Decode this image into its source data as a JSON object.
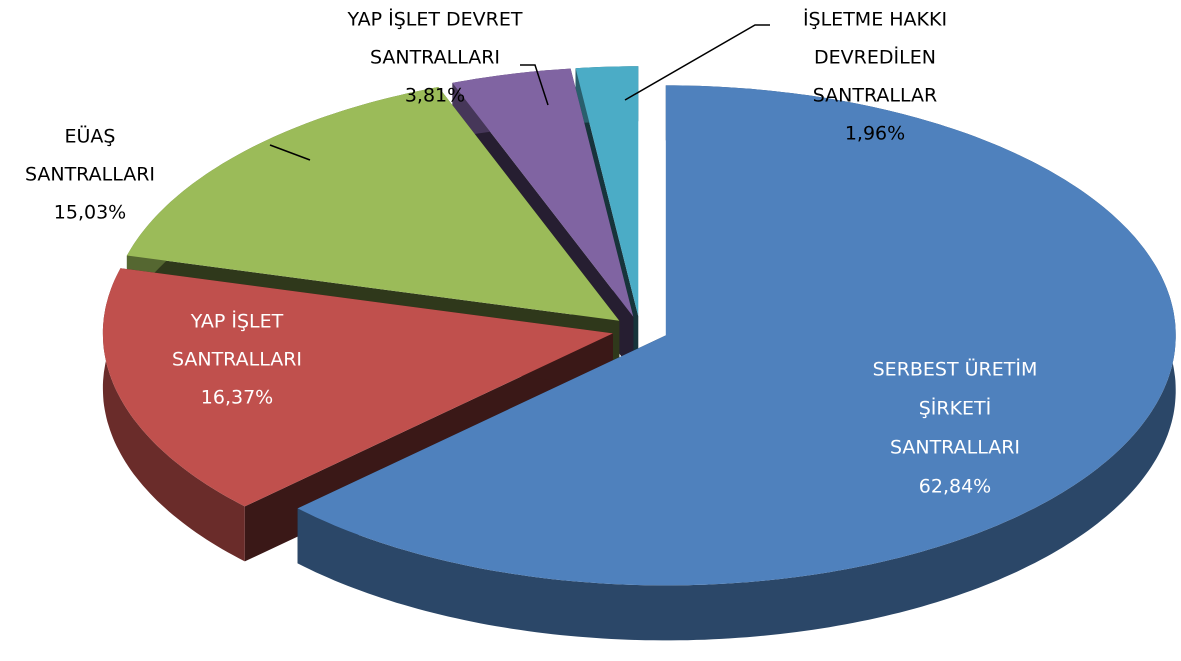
{
  "chart_data": {
    "type": "pie3d",
    "categories": [
      [
        "SERBEST ÜRETİM",
        "ŞİRKETİ",
        "SANTRALLARI"
      ],
      [
        "YAP İŞLET",
        "SANTRALLARI"
      ],
      [
        "EÜAŞ",
        "SANTRALLARI"
      ],
      [
        "YAP İŞLET DEVRET",
        "SANTRALLARI"
      ],
      [
        "İŞLETME HAKKI",
        "DEVREDİLEN",
        "SANTRALLAR"
      ]
    ],
    "values": [
      62.84,
      16.37,
      15.03,
      3.81,
      1.96
    ],
    "value_labels": [
      "62,84%",
      "16,37%",
      "15,03%",
      "3,81%",
      "1,96%"
    ],
    "colors": [
      "#4f81bd",
      "#c0504d",
      "#9bbb59",
      "#8064a2",
      "#4bacc6"
    ]
  }
}
